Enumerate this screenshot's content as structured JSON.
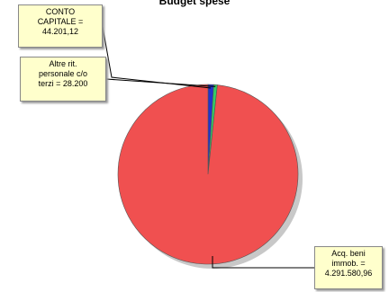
{
  "chart_data": {
    "type": "pie",
    "title": "Budget spese",
    "slices": [
      {
        "label": "CONTO CAPITALE",
        "value": 44201.12,
        "value_text": "44.201,12",
        "color": "#2233cc"
      },
      {
        "label": "Altre rit. personale c/o terzi",
        "value": 28200,
        "value_text": "28.200",
        "color": "#33cc66"
      },
      {
        "label": "Acq. beni immob.",
        "value": 4291580.96,
        "value_text": "4.291.580,96",
        "color": "#f05050"
      }
    ]
  },
  "callouts": {
    "conto_capitale": "CONTO\nCAPITALE =\n44.201,12",
    "altre_rit": "Altre rit.\npersonale c/o\nterzi = 28.200",
    "acq_beni": "Acq. beni\nimmob. =\n4.291.580,96"
  }
}
